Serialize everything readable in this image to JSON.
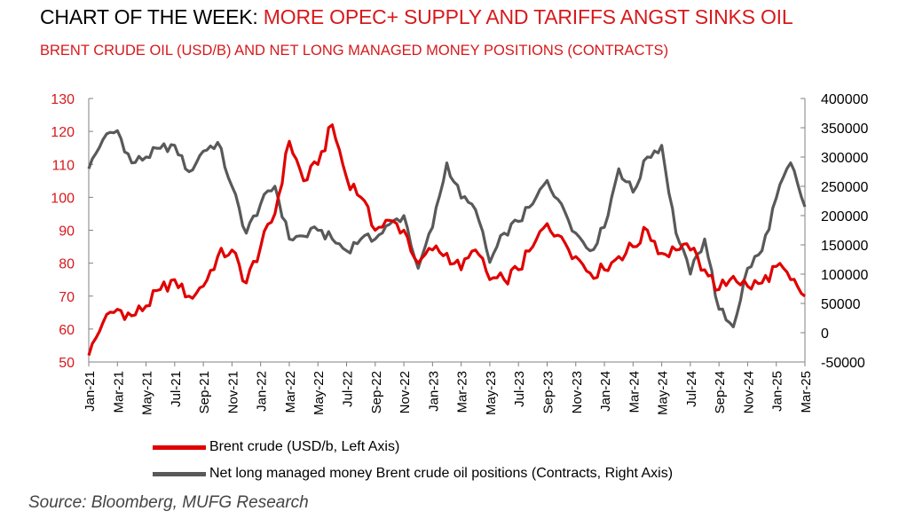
{
  "title_part1": "CHART OF THE WEEK: ",
  "title_part2": "MORE OPEC+ SUPPLY AND TARIFFS ANGST SINKS OIL",
  "subtitle": "BRENT CRUDE OIL (USD/B) AND NET LONG MANAGED MONEY POSITIONS (CONTRACTS)",
  "source": "Source: Bloomberg, MUFG Research",
  "colors": {
    "brent": "#e00000",
    "positions": "#595959",
    "title_accent": "#d7191c",
    "left_axis_text": "#d7191c",
    "axis": "#808080"
  },
  "chart_data": {
    "type": "line",
    "xlim": [
      "2021-01",
      "2025-03"
    ],
    "x_ticks": [
      "Jan-21",
      "Mar-21",
      "May-21",
      "Jul-21",
      "Sep-21",
      "Nov-21",
      "Jan-22",
      "Mar-22",
      "May-22",
      "Jul-22",
      "Sep-22",
      "Nov-22",
      "Jan-23",
      "Mar-23",
      "May-23",
      "Jul-23",
      "Sep-23",
      "Nov-23",
      "Jan-24",
      "Mar-24",
      "May-24",
      "Jul-24",
      "Sep-24",
      "Nov-24",
      "Jan-25",
      "Mar-25"
    ],
    "left_axis": {
      "ylim": [
        50,
        130
      ],
      "ticks": [
        "50",
        "60",
        "70",
        "80",
        "90",
        "100",
        "110",
        "120",
        "130"
      ]
    },
    "right_axis": {
      "ylim": [
        -50000,
        400000
      ],
      "ticks": [
        "-50000",
        "0",
        "50000",
        "100000",
        "150000",
        "200000",
        "250000",
        "300000",
        "350000",
        "400000"
      ]
    },
    "legend_position": "bottom",
    "series": [
      {
        "name": "Brent crude (USD/b, Left Axis)",
        "axis": "left",
        "points": [
          [
            "2021-01",
            52
          ],
          [
            "2021-02",
            62
          ],
          [
            "2021-03",
            66
          ],
          [
            "2021-04",
            64
          ],
          [
            "2021-05",
            67
          ],
          [
            "2021-06",
            72
          ],
          [
            "2021-07",
            75
          ],
          [
            "2021-08",
            70
          ],
          [
            "2021-09",
            73
          ],
          [
            "2021-10",
            82
          ],
          [
            "2021-11",
            84
          ],
          [
            "2021-12",
            74
          ],
          [
            "2022-01",
            85
          ],
          [
            "2022-02",
            95
          ],
          [
            "2022-03",
            117
          ],
          [
            "2022-04",
            105
          ],
          [
            "2022-05",
            110
          ],
          [
            "2022-06",
            122
          ],
          [
            "2022-07",
            106
          ],
          [
            "2022-08",
            100
          ],
          [
            "2022-09",
            90
          ],
          [
            "2022-10",
            93
          ],
          [
            "2022-11",
            90
          ],
          [
            "2022-12",
            80
          ],
          [
            "2023-01",
            84
          ],
          [
            "2023-02",
            83
          ],
          [
            "2023-03",
            78
          ],
          [
            "2023-04",
            84
          ],
          [
            "2023-05",
            75
          ],
          [
            "2023-06",
            75
          ],
          [
            "2023-07",
            78
          ],
          [
            "2023-08",
            85
          ],
          [
            "2023-09",
            92
          ],
          [
            "2023-10",
            88
          ],
          [
            "2023-11",
            82
          ],
          [
            "2023-12",
            77
          ],
          [
            "2024-01",
            78
          ],
          [
            "2024-02",
            82
          ],
          [
            "2024-03",
            85
          ],
          [
            "2024-04",
            90
          ],
          [
            "2024-05",
            83
          ],
          [
            "2024-06",
            84
          ],
          [
            "2024-07",
            84
          ],
          [
            "2024-08",
            78
          ],
          [
            "2024-09",
            72
          ],
          [
            "2024-10",
            76
          ],
          [
            "2024-11",
            73
          ],
          [
            "2024-12",
            74
          ],
          [
            "2025-01",
            79
          ],
          [
            "2025-02",
            75
          ],
          [
            "2025-03",
            70
          ]
        ]
      },
      {
        "name": "Net long managed money Brent crude oil positions (Contracts, Right Axis)",
        "axis": "right",
        "points": [
          [
            "2021-01",
            280000
          ],
          [
            "2021-02",
            330000
          ],
          [
            "2021-03",
            345000
          ],
          [
            "2021-04",
            290000
          ],
          [
            "2021-05",
            300000
          ],
          [
            "2021-06",
            315000
          ],
          [
            "2021-07",
            320000
          ],
          [
            "2021-08",
            275000
          ],
          [
            "2021-09",
            310000
          ],
          [
            "2021-10",
            325000
          ],
          [
            "2021-11",
            250000
          ],
          [
            "2021-12",
            170000
          ],
          [
            "2022-01",
            220000
          ],
          [
            "2022-02",
            250000
          ],
          [
            "2022-03",
            160000
          ],
          [
            "2022-04",
            165000
          ],
          [
            "2022-05",
            175000
          ],
          [
            "2022-06",
            160000
          ],
          [
            "2022-07",
            140000
          ],
          [
            "2022-08",
            160000
          ],
          [
            "2022-09",
            160000
          ],
          [
            "2022-10",
            185000
          ],
          [
            "2022-11",
            200000
          ],
          [
            "2022-12",
            110000
          ],
          [
            "2023-01",
            180000
          ],
          [
            "2023-02",
            290000
          ],
          [
            "2023-03",
            230000
          ],
          [
            "2023-04",
            210000
          ],
          [
            "2023-05",
            120000
          ],
          [
            "2023-06",
            170000
          ],
          [
            "2023-07",
            190000
          ],
          [
            "2023-08",
            220000
          ],
          [
            "2023-09",
            260000
          ],
          [
            "2023-10",
            220000
          ],
          [
            "2023-11",
            170000
          ],
          [
            "2023-12",
            140000
          ],
          [
            "2024-01",
            180000
          ],
          [
            "2024-02",
            280000
          ],
          [
            "2024-03",
            240000
          ],
          [
            "2024-04",
            300000
          ],
          [
            "2024-05",
            320000
          ],
          [
            "2024-06",
            170000
          ],
          [
            "2024-07",
            100000
          ],
          [
            "2024-08",
            160000
          ],
          [
            "2024-09",
            40000
          ],
          [
            "2024-10",
            10000
          ],
          [
            "2024-11",
            110000
          ],
          [
            "2024-12",
            140000
          ],
          [
            "2025-01",
            230000
          ],
          [
            "2025-02",
            290000
          ],
          [
            "2025-03",
            215000
          ]
        ]
      }
    ]
  }
}
